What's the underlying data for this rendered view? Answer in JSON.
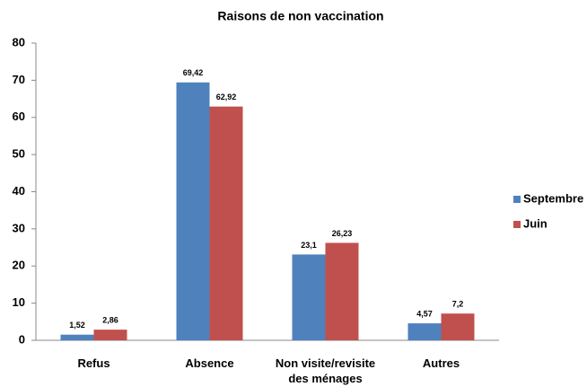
{
  "chart_data": {
    "type": "bar",
    "title": "Raisons de non vaccination",
    "categories": [
      "Refus",
      "Absence",
      "Non visite/revisite des ménages",
      "Autres"
    ],
    "series": [
      {
        "name": "Septembre",
        "color": "#4f81bd",
        "values": [
          1.52,
          69.42,
          23.1,
          4.57
        ],
        "value_labels": [
          "1,52",
          "69,42",
          "23,1",
          "4,57"
        ]
      },
      {
        "name": "Juin",
        "color": "#c0504d",
        "values": [
          2.86,
          62.92,
          26.23,
          7.2
        ],
        "value_labels": [
          "2,86",
          "62,92",
          "26,23",
          "7,2"
        ]
      }
    ],
    "ylim": [
      0,
      80
    ],
    "yticks": [
      0,
      10,
      20,
      30,
      40,
      50,
      60,
      70,
      80
    ],
    "grid": false,
    "legend": "right"
  }
}
